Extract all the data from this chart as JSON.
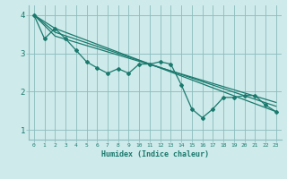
{
  "xlabel": "Humidex (Indice chaleur)",
  "background_color": "#ceeaea",
  "grid_color": "#8bbcbc",
  "line_color": "#1a7a6e",
  "xlim": [
    -0.5,
    23.5
  ],
  "ylim": [
    0.75,
    4.25
  ],
  "yticks": [
    1,
    2,
    3,
    4
  ],
  "xticks": [
    0,
    1,
    2,
    3,
    4,
    5,
    6,
    7,
    8,
    9,
    10,
    11,
    12,
    13,
    14,
    15,
    16,
    17,
    18,
    19,
    20,
    21,
    22,
    23
  ],
  "series1_x": [
    0,
    1,
    2,
    3,
    4,
    5,
    6,
    7,
    8,
    9,
    10,
    11,
    12,
    13,
    14,
    15,
    16,
    17,
    18,
    19,
    20,
    21,
    22,
    23
  ],
  "series1_y": [
    4.0,
    3.38,
    3.65,
    3.38,
    3.08,
    2.78,
    2.62,
    2.48,
    2.6,
    2.48,
    2.72,
    2.72,
    2.78,
    2.72,
    2.18,
    1.55,
    1.32,
    1.55,
    1.85,
    1.85,
    1.9,
    1.9,
    1.65,
    1.48
  ],
  "series2_x": [
    0,
    2,
    23
  ],
  "series2_y": [
    4.0,
    3.65,
    1.48
  ],
  "series3_x": [
    0,
    2,
    23
  ],
  "series3_y": [
    4.0,
    3.55,
    1.62
  ],
  "series4_x": [
    0,
    2,
    23
  ],
  "series4_y": [
    4.0,
    3.45,
    1.72
  ]
}
